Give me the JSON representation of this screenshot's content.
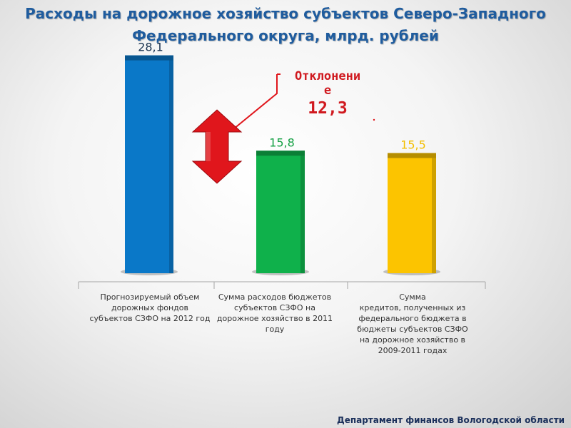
{
  "title_line1": "Расходы на дорожное хозяйство субъектов Северо-Западного",
  "title_line2": "Федерального округа, млрд. рублей",
  "chart_data": {
    "type": "bar",
    "categories": [
      "Прогнозируемый объем дорожных фондов субъектов СЗФО на 2012 год",
      "Сумма расходов  бюджетов субъектов СЗФО на дорожное хозяйство в 2011 году",
      "Сумма кредитов, полученных из федерального бюджета в бюджеты субъектов СЗФО на дорожное хозяйство в 2009-2011 годах"
    ],
    "values": [
      28.1,
      15.8,
      15.5
    ],
    "value_labels": [
      "28,1",
      "15,8",
      "15,5"
    ],
    "colors": [
      "#0a78c8",
      "#0fb14b",
      "#fcc400"
    ],
    "label_colors": [
      "#1a3350",
      "#13a043",
      "#f3be00"
    ],
    "ylim": [
      0,
      30
    ]
  },
  "category_lines": [
    [
      "Прогнозируемый объем",
      "дорожных фондов",
      "субъектов СЗФО на 2012 год"
    ],
    [
      "Сумма расходов  бюджетов",
      "субъектов СЗФО на",
      "дорожное хозяйство в 2011",
      "году"
    ],
    [
      "Сумма",
      "кредитов, полученных из",
      "федерального бюджета в",
      "бюджеты субъектов СЗФО",
      "на дорожное хозяйство в",
      "2009-2011 годах"
    ]
  ],
  "deviation": {
    "label_line1": "Отклонени",
    "label_line2": "е",
    "value": "12,3",
    "arrow_color": "#e0161c"
  },
  "footer": "Департамент финансов Вологодской области"
}
